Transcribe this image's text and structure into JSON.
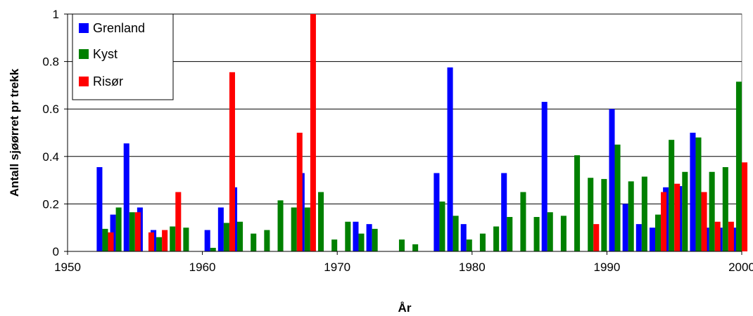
{
  "chart_data": {
    "type": "bar",
    "xlabel": "År",
    "ylabel": "Antall sjøørret pr trekk",
    "xlim": [
      1950,
      2000
    ],
    "ylim": [
      0,
      1
    ],
    "grid": true,
    "legend_position": "top-left",
    "x_ticks": [
      "1950",
      "1960",
      "1970",
      "1980",
      "1990",
      "2000"
    ],
    "y_ticks": [
      "0",
      "0.2",
      "0.4",
      "0.6",
      "0.8",
      "1"
    ],
    "x_tick_values": [
      1950,
      1960,
      1970,
      1980,
      1990,
      2000
    ],
    "y_tick_values": [
      0,
      0.2,
      0.4,
      0.6,
      0.8,
      1
    ],
    "series": [
      {
        "name": "Grenland",
        "color": "#0000ff",
        "points": [
          [
            1953,
            0.355
          ],
          [
            1954,
            0.155
          ],
          [
            1955,
            0.455
          ],
          [
            1956,
            0.185
          ],
          [
            1957,
            0.09
          ],
          [
            1961,
            0.09
          ],
          [
            1962,
            0.185
          ],
          [
            1963,
            0.27
          ],
          [
            1968,
            0.33
          ],
          [
            1972,
            0.125
          ],
          [
            1973,
            0.115
          ],
          [
            1978,
            0.33
          ],
          [
            1979,
            0.775
          ],
          [
            1980,
            0.115
          ],
          [
            1983,
            0.33
          ],
          [
            1986,
            0.63
          ],
          [
            1991,
            0.6
          ],
          [
            1992,
            0.2
          ],
          [
            1993,
            0.115
          ],
          [
            1994,
            0.1
          ],
          [
            1995,
            0.27
          ],
          [
            1996,
            0.275
          ],
          [
            1997,
            0.5
          ],
          [
            1998,
            0.1
          ],
          [
            1999,
            0.1
          ],
          [
            2000,
            0.1
          ]
        ]
      },
      {
        "name": "Kyst",
        "color": "#008000",
        "points": [
          [
            1953,
            0.095
          ],
          [
            1954,
            0.185
          ],
          [
            1955,
            0.165
          ],
          [
            1957,
            0.06
          ],
          [
            1958,
            0.105
          ],
          [
            1959,
            0.1
          ],
          [
            1961,
            0.015
          ],
          [
            1962,
            0.12
          ],
          [
            1963,
            0.125
          ],
          [
            1964,
            0.075
          ],
          [
            1965,
            0.09
          ],
          [
            1966,
            0.215
          ],
          [
            1967,
            0.185
          ],
          [
            1968,
            0.185
          ],
          [
            1969,
            0.25
          ],
          [
            1970,
            0.05
          ],
          [
            1971,
            0.125
          ],
          [
            1972,
            0.075
          ],
          [
            1973,
            0.095
          ],
          [
            1975,
            0.05
          ],
          [
            1976,
            0.03
          ],
          [
            1978,
            0.21
          ],
          [
            1979,
            0.15
          ],
          [
            1980,
            0.05
          ],
          [
            1981,
            0.075
          ],
          [
            1982,
            0.105
          ],
          [
            1983,
            0.145
          ],
          [
            1984,
            0.25
          ],
          [
            1985,
            0.145
          ],
          [
            1986,
            0.165
          ],
          [
            1987,
            0.15
          ],
          [
            1988,
            0.405
          ],
          [
            1989,
            0.31
          ],
          [
            1990,
            0.305
          ],
          [
            1991,
            0.45
          ],
          [
            1992,
            0.295
          ],
          [
            1993,
            0.315
          ],
          [
            1994,
            0.155
          ],
          [
            1995,
            0.47
          ],
          [
            1996,
            0.335
          ],
          [
            1997,
            0.48
          ],
          [
            1998,
            0.335
          ],
          [
            1999,
            0.355
          ],
          [
            2000,
            0.715
          ]
        ]
      },
      {
        "name": "Risør",
        "color": "#ff0000",
        "points": [
          [
            1953,
            0.08
          ],
          [
            1955,
            0.165
          ],
          [
            1956,
            0.08
          ],
          [
            1957,
            0.09
          ],
          [
            1958,
            0.25
          ],
          [
            1962,
            0.755
          ],
          [
            1967,
            0.5
          ],
          [
            1968,
            1.0
          ],
          [
            1989,
            0.115
          ],
          [
            1994,
            0.25
          ],
          [
            1995,
            0.285
          ],
          [
            1997,
            0.25
          ],
          [
            1998,
            0.125
          ],
          [
            1999,
            0.125
          ],
          [
            2000,
            0.375
          ]
        ]
      }
    ]
  }
}
